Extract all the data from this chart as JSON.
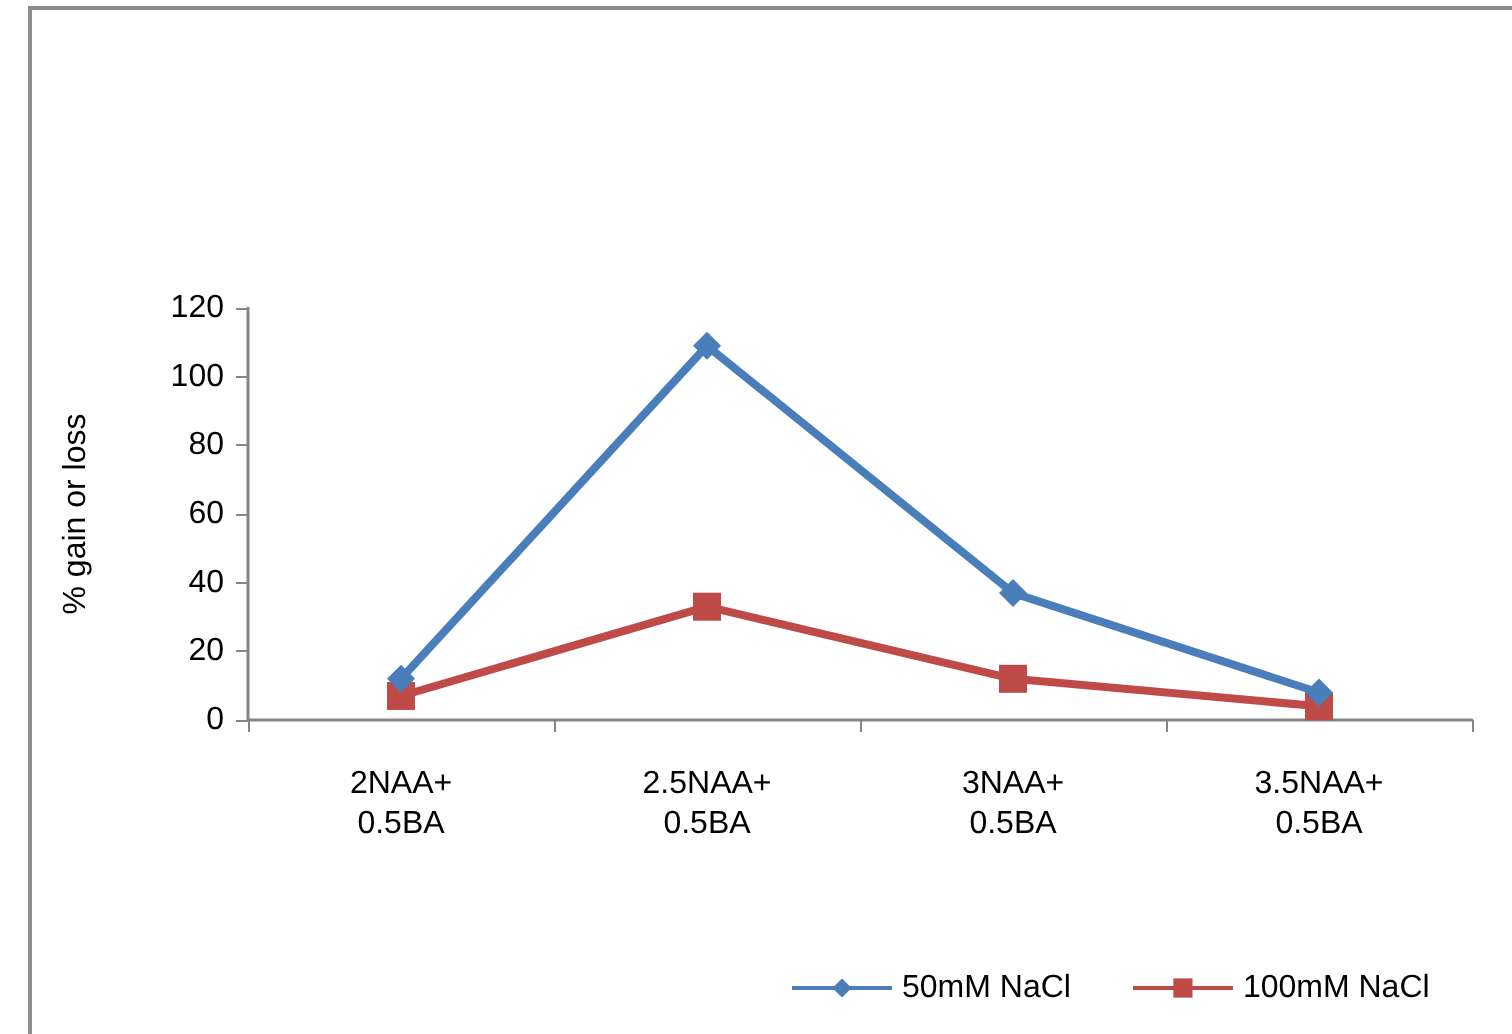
{
  "chart_data": {
    "type": "line",
    "ylabel": "% gain or loss",
    "categories": [
      "2NAA+\n0.5BA",
      "2.5NAA+\n0.5BA",
      "3NAA+\n0.5BA",
      "3.5NAA+\n0.5BA"
    ],
    "series": [
      {
        "name": "50mM NaCl",
        "color": "#4a7ebb",
        "marker": "diamond",
        "values": [
          12,
          109,
          37,
          8
        ]
      },
      {
        "name": "100mM NaCl",
        "color": "#be4b48",
        "marker": "square",
        "values": [
          7,
          33,
          12,
          4
        ]
      }
    ],
    "ylim": [
      0,
      120
    ],
    "yticks": [
      0,
      20,
      40,
      60,
      80,
      100,
      120
    ],
    "grid": false,
    "legend": "bottom"
  }
}
